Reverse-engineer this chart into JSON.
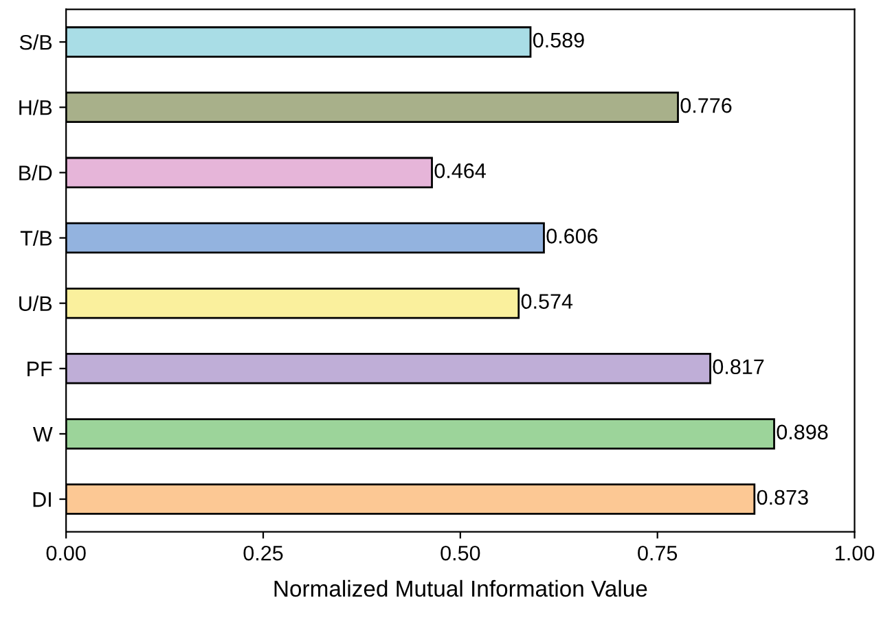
{
  "chart_data": {
    "type": "bar",
    "orientation": "horizontal",
    "xlabel": "Normalized Mutual Information Value",
    "categories": [
      "S/B",
      "H/B",
      "B/D",
      "T/B",
      "U/B",
      "PF",
      "W",
      "DI"
    ],
    "values": [
      0.589,
      0.776,
      0.464,
      0.606,
      0.574,
      0.817,
      0.898,
      0.873
    ],
    "colors": [
      "#a9dde6",
      "#a8b08a",
      "#e6b5d9",
      "#93b3df",
      "#faf09d",
      "#bfaed7",
      "#9cd49a",
      "#fcc894"
    ],
    "xlim": [
      0,
      1
    ],
    "xticks": [
      {
        "value": 0,
        "label": "0.00"
      },
      {
        "value": 0.25,
        "label": "0.25"
      },
      {
        "value": 0.5,
        "label": "0.50"
      },
      {
        "value": 0.75,
        "label": "0.75"
      },
      {
        "value": 1,
        "label": "1.00"
      }
    ],
    "data_labels": true,
    "grid": false,
    "legend": false
  }
}
